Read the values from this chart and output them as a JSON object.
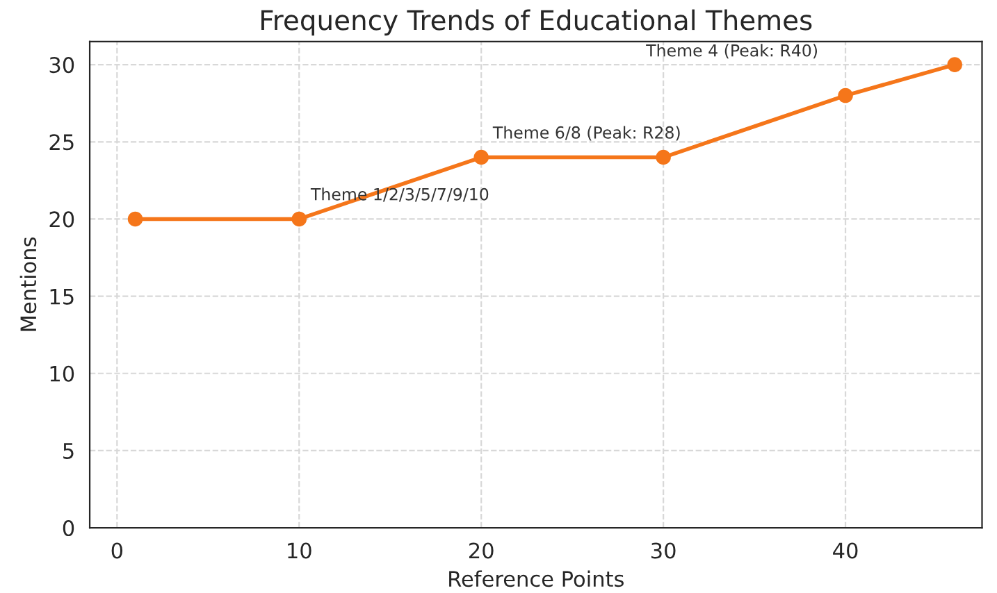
{
  "chart_data": {
    "type": "line",
    "title": "Frequency Trends of Educational Themes",
    "xlabel": "Reference Points",
    "ylabel": "Mentions",
    "x": [
      1,
      10,
      20,
      30,
      40,
      46
    ],
    "series": [
      {
        "color": "#f5761a",
        "values": [
          20,
          20,
          24,
          24,
          28,
          30
        ]
      }
    ],
    "xlim": [
      -1.5,
      47.5
    ],
    "ylim": [
      0,
      31.5
    ],
    "xticks": [
      0,
      10,
      20,
      30,
      40
    ],
    "yticks": [
      0,
      5,
      10,
      15,
      20,
      25,
      30
    ],
    "grid": true,
    "marker": "circle",
    "line_style": "solid",
    "annotations": [
      {
        "text": "Theme 1/2/3/5/7/9/10",
        "x": 10,
        "y": 20
      },
      {
        "text": "Theme 6/8 (Peak: R28)",
        "x": 20,
        "y": 24
      },
      "Theme 4 (Peak: R40)"
    ]
  }
}
